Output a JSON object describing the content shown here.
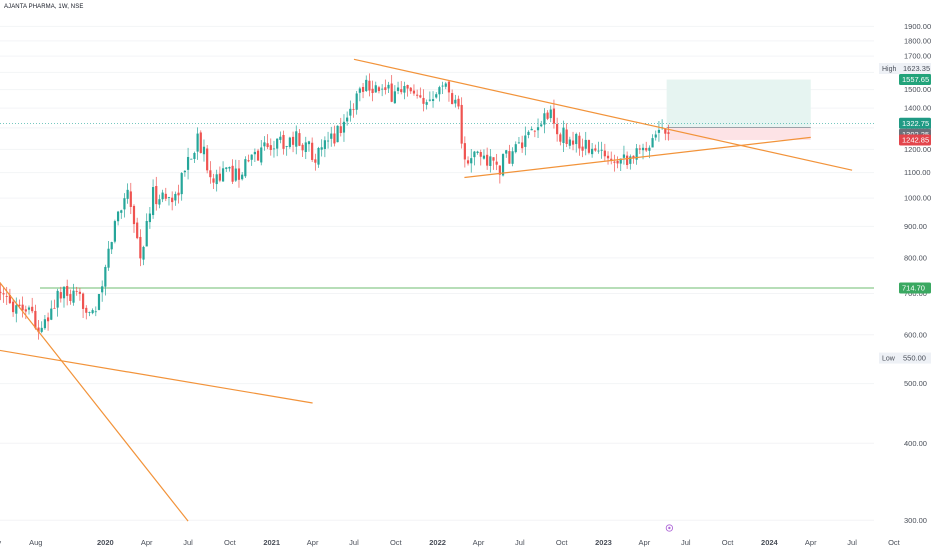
{
  "symbol_line": "AJANTA PHARMA, 1W, NSE",
  "colors": {
    "up": "#26a69a",
    "down": "#ef5350",
    "trendline": "#f2933a",
    "support": "#4caf50",
    "tp_zone": "#e6f4f1",
    "sl_zone": "#fde3e6",
    "current_price_line": "#26a69a"
  },
  "chart_data": {
    "type": "candlestick",
    "x_axis": {
      "range": [
        "2019-05-01",
        "2024-11-01"
      ],
      "tick_labels": [
        "May",
        "Aug",
        "2020",
        "Apr",
        "Jul",
        "Oct",
        "2021",
        "Apr",
        "Jul",
        "Oct",
        "2022",
        "Apr",
        "Jul",
        "Oct",
        "2023",
        "Apr",
        "Jul",
        "Oct",
        "2024",
        "Apr",
        "Jul",
        "Oct"
      ],
      "tick_dates": [
        "2019-05-01",
        "2019-08-01",
        "2020-01-01",
        "2020-04-01",
        "2020-07-01",
        "2020-10-01",
        "2021-01-01",
        "2021-04-01",
        "2021-07-01",
        "2021-10-01",
        "2022-01-01",
        "2022-04-01",
        "2022-07-01",
        "2022-10-01",
        "2023-01-01",
        "2023-04-01",
        "2023-07-01",
        "2023-10-01",
        "2024-01-01",
        "2024-04-01",
        "2024-07-01",
        "2024-10-01"
      ]
    },
    "y_axis": {
      "scale": "log",
      "range": [
        285,
        1990
      ],
      "tick_labels": [
        "1900.00",
        "1800.00",
        "1700.00",
        "1600.00",
        "1500.00",
        "1400.00",
        "1300.00",
        "1200.00",
        "1100.00",
        "1000.00",
        "900.00",
        "800.00",
        "700.00",
        "600.00",
        "500.00",
        "400.00",
        "300.00"
      ],
      "tick_values": [
        1900,
        1800,
        1700,
        1600,
        1500,
        1400,
        1300,
        1200,
        1100,
        1000,
        900,
        800,
        700,
        600,
        500,
        400,
        300
      ]
    },
    "anchors": [
      {
        "date": "2019-05-01",
        "close": 690
      },
      {
        "date": "2019-07-20",
        "close": 665
      },
      {
        "date": "2019-08-12",
        "close": 600
      },
      {
        "date": "2019-09-20",
        "close": 700
      },
      {
        "date": "2019-12-15",
        "close": 660
      },
      {
        "date": "2020-01-20",
        "close": 900
      },
      {
        "date": "2020-02-20",
        "close": 1050
      },
      {
        "date": "2020-03-18",
        "close": 800
      },
      {
        "date": "2020-04-15",
        "close": 1010
      },
      {
        "date": "2020-06-01",
        "close": 1000
      },
      {
        "date": "2020-07-20",
        "close": 1250
      },
      {
        "date": "2020-08-25",
        "close": 1090
      },
      {
        "date": "2020-10-20",
        "close": 1100
      },
      {
        "date": "2020-12-20",
        "close": 1220
      },
      {
        "date": "2021-02-25",
        "close": 1250
      },
      {
        "date": "2021-04-15",
        "close": 1170
      },
      {
        "date": "2021-06-15",
        "close": 1350
      },
      {
        "date": "2021-07-25",
        "close": 1560
      },
      {
        "date": "2021-09-10",
        "close": 1470
      },
      {
        "date": "2021-10-15",
        "close": 1510
      },
      {
        "date": "2021-12-01",
        "close": 1400
      },
      {
        "date": "2022-01-05",
        "close": 1560
      },
      {
        "date": "2022-02-15",
        "close": 1430
      },
      {
        "date": "2022-03-01",
        "close": 1130
      },
      {
        "date": "2022-04-01",
        "close": 1180
      },
      {
        "date": "2022-05-15",
        "close": 1120
      },
      {
        "date": "2022-06-20",
        "close": 1200
      },
      {
        "date": "2022-08-01",
        "close": 1260
      },
      {
        "date": "2022-09-01",
        "close": 1390
      },
      {
        "date": "2022-09-20",
        "close": 1270
      },
      {
        "date": "2022-11-01",
        "close": 1240
      },
      {
        "date": "2022-12-20",
        "close": 1180
      },
      {
        "date": "2023-02-15",
        "close": 1170
      },
      {
        "date": "2023-03-25",
        "close": 1180
      },
      {
        "date": "2023-04-25",
        "close": 1290
      },
      {
        "date": "2023-05-26",
        "close": 1302
      }
    ],
    "trendlines": [
      {
        "from": {
          "date": "2021-07-01",
          "price": 1680
        },
        "to": {
          "date": "2024-07-01",
          "price": 1110
        }
      },
      {
        "from": {
          "date": "2022-03-01",
          "price": 1080
        },
        "to": {
          "date": "2024-04-01",
          "price": 1255
        }
      },
      {
        "from": {
          "date": "2019-04-01",
          "price": 800
        },
        "to": {
          "date": "2020-07-01",
          "price": 299
        }
      },
      {
        "from": {
          "date": "2019-04-01",
          "price": 573
        },
        "to": {
          "date": "2021-04-01",
          "price": 465
        }
      }
    ],
    "horizontal_lines": [
      {
        "price": 714.7
      }
    ],
    "position": {
      "entry": 1302.25,
      "target": 1557.65,
      "stop": 1242.85,
      "start": "2023-05-20",
      "end": "2024-04-01"
    },
    "price_labels": [
      {
        "kind": "target",
        "value": "1557.65"
      },
      {
        "kind": "last",
        "value": "1322.75"
      },
      {
        "kind": "entry",
        "value": "1302.25"
      },
      {
        "kind": "stop",
        "value": "1242.85"
      },
      {
        "kind": "support",
        "value": "714.70"
      }
    ],
    "high": {
      "label": "High",
      "value": "1623.35"
    },
    "low": {
      "label": "Low",
      "value": "550.00"
    }
  }
}
